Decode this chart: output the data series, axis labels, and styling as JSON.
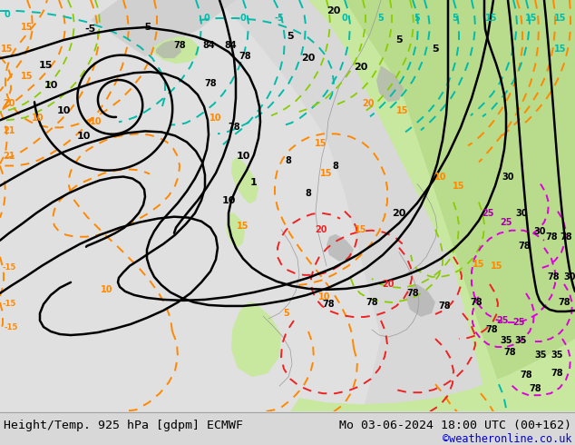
{
  "title_left": "Height/Temp. 925 hPa [gdpm] ECMWF",
  "title_right": "Mo 03-06-2024 18:00 UTC (00+162)",
  "credit": "©weatheronline.co.uk",
  "fig_width": 6.34,
  "fig_height": 4.9,
  "dpi": 100,
  "title_fontsize": 9.5,
  "credit_fontsize": 8.5,
  "credit_color": "#0000cc",
  "ocean_color": "#e8e8e8",
  "land_green": "#c8e8a0",
  "land_green2": "#b8dc8c",
  "gray_coast": "#aaaaaa",
  "bottom_bg": "#d8d8d8",
  "black": "#000000",
  "orange": "#ff8800",
  "teal": "#00bbaa",
  "red": "#ee2222",
  "pink": "#dd00dd",
  "ygreen": "#88cc00",
  "dkgreen": "#44aa44"
}
